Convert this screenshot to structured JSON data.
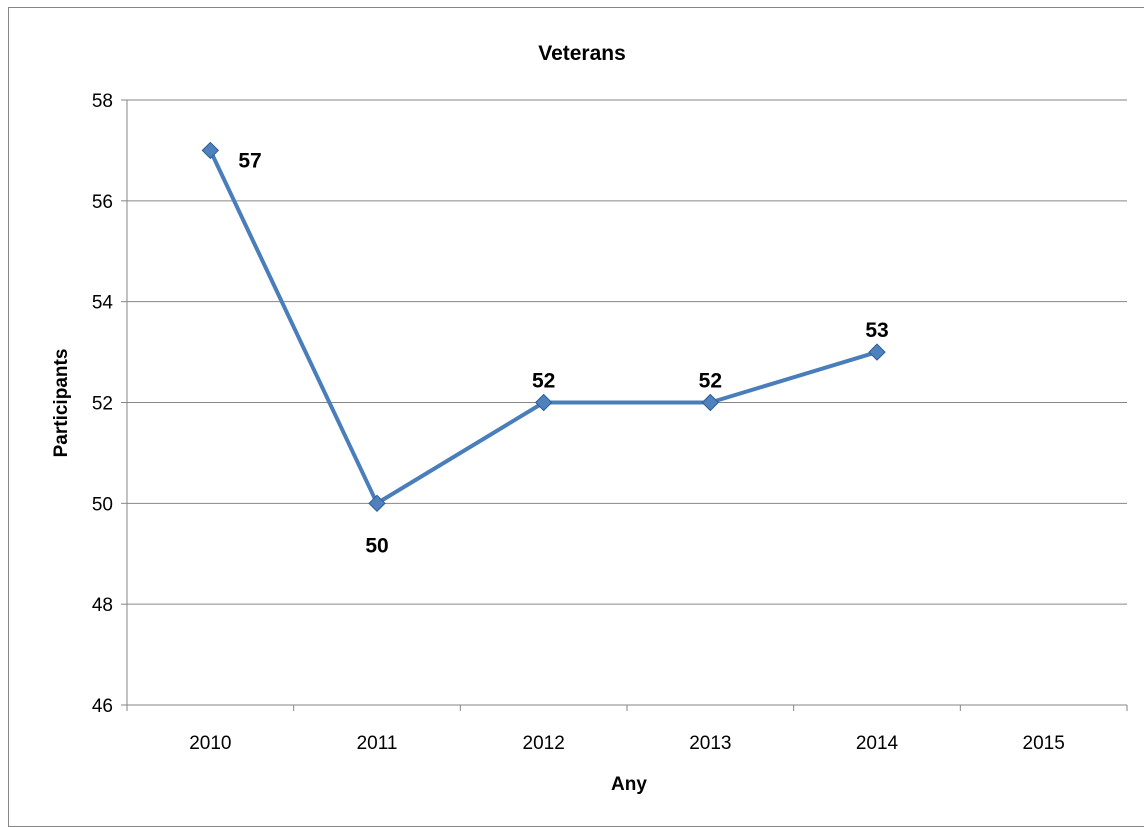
{
  "chart_data": {
    "type": "line",
    "title": "Veterans",
    "xlabel": "Any",
    "ylabel": "Participants",
    "categories": [
      "2010",
      "2011",
      "2012",
      "2013",
      "2014",
      "2015"
    ],
    "series": [
      {
        "values": [
          57,
          50,
          52,
          52,
          53,
          null
        ],
        "color": "#4f81bd",
        "marker": "diamond"
      }
    ],
    "data_labels": [
      "57",
      "50",
      "52",
      "52",
      "53"
    ],
    "ylim": [
      46,
      58
    ],
    "yticks": [
      "46",
      "48",
      "50",
      "52",
      "54",
      "56",
      "58"
    ],
    "grid": true,
    "legend": "none"
  }
}
